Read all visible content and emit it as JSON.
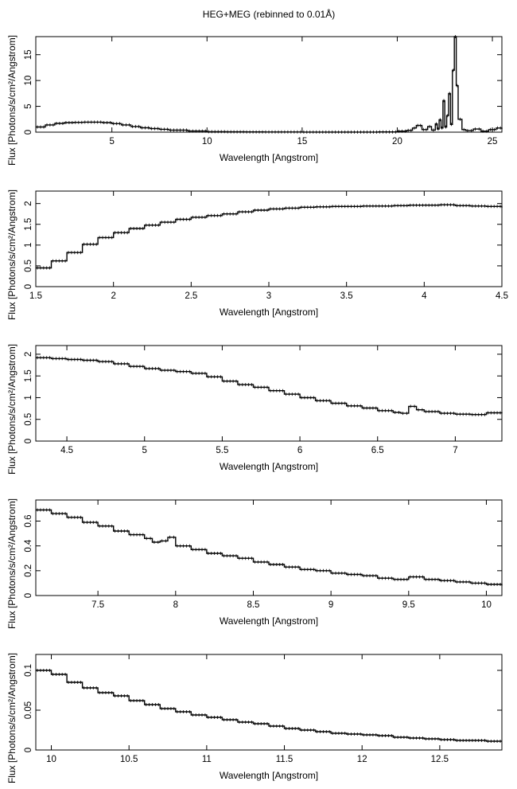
{
  "figure": {
    "title": "HEG+MEG (rebinned to 0.01Å)",
    "line_color": "#000000",
    "background": "#ffffff"
  },
  "chart_data": [
    {
      "type": "line",
      "style": "histogram-step with error bars",
      "xlabel": "Wavelength [Angstrom]",
      "ylabel": "Flux [Photons/s/cm²/Angstrom]",
      "xlim": [
        1.0,
        25.5
      ],
      "ylim": [
        0,
        18.5
      ],
      "xticks": [
        5,
        10,
        15,
        20,
        25
      ],
      "xtick_labels": [
        "5",
        "10",
        "15",
        "20",
        "25"
      ],
      "yticks": [
        0,
        5,
        10,
        15
      ],
      "ytick_labels": [
        "0",
        "5",
        "10",
        "15"
      ],
      "grid": false,
      "series": [
        {
          "x": [
            1.0,
            1.5,
            2.0,
            2.5,
            3.0,
            3.5,
            4.0,
            4.5,
            5.0,
            5.5,
            6.0,
            6.5,
            7.0,
            7.5,
            8.0,
            9.0,
            10.0,
            11.0,
            12.0,
            13.0,
            15.0,
            17.0,
            19.0,
            20.0,
            20.5,
            20.8,
            21.0,
            21.3,
            21.6,
            21.8,
            22.0,
            22.1,
            22.2,
            22.3,
            22.4,
            22.5,
            22.6,
            22.7,
            22.8,
            22.9,
            23.0,
            23.1,
            23.2,
            23.4,
            23.6,
            24.0,
            24.4,
            24.8,
            25.2,
            25.5
          ],
          "y": [
            1.0,
            1.4,
            1.7,
            1.85,
            1.9,
            1.95,
            1.95,
            1.85,
            1.65,
            1.4,
            1.1,
            0.85,
            0.7,
            0.55,
            0.4,
            0.22,
            0.1,
            0.06,
            0.04,
            0.03,
            0.02,
            0.02,
            0.05,
            0.2,
            0.35,
            0.8,
            1.3,
            0.5,
            1.1,
            0.4,
            1.6,
            0.6,
            2.4,
            0.8,
            6.1,
            1.0,
            3.2,
            7.5,
            1.5,
            12.0,
            18.5,
            9.0,
            2.5,
            0.5,
            0.3,
            0.6,
            0.2,
            0.5,
            0.8,
            0.6
          ]
        }
      ]
    },
    {
      "type": "line",
      "style": "histogram-step with error bars",
      "xlabel": "Wavelength [Angstrom]",
      "ylabel": "Flux [Photons/s/cm²/Angstrom]",
      "xlim": [
        1.5,
        4.5
      ],
      "ylim": [
        0,
        2.3
      ],
      "xticks": [
        1.5,
        2,
        2.5,
        3,
        3.5,
        4,
        4.5
      ],
      "xtick_labels": [
        "1.5",
        "2",
        "2.5",
        "3",
        "3.5",
        "4",
        "4.5"
      ],
      "yticks": [
        0,
        0.5,
        1,
        1.5,
        2
      ],
      "ytick_labels": [
        "0",
        "0.5",
        "1",
        "1.5",
        "2"
      ],
      "grid": false,
      "series": [
        {
          "x": [
            1.5,
            1.6,
            1.7,
            1.8,
            1.9,
            2.0,
            2.1,
            2.2,
            2.3,
            2.4,
            2.5,
            2.6,
            2.7,
            2.8,
            2.9,
            3.0,
            3.1,
            3.2,
            3.3,
            3.4,
            3.5,
            3.6,
            3.7,
            3.8,
            3.9,
            4.0,
            4.1,
            4.2,
            4.3,
            4.4,
            4.5
          ],
          "y": [
            0.45,
            0.62,
            0.82,
            1.02,
            1.18,
            1.3,
            1.4,
            1.48,
            1.55,
            1.62,
            1.67,
            1.71,
            1.75,
            1.8,
            1.84,
            1.87,
            1.89,
            1.91,
            1.92,
            1.93,
            1.93,
            1.94,
            1.94,
            1.95,
            1.96,
            1.96,
            1.97,
            1.95,
            1.94,
            1.93,
            1.9
          ]
        }
      ]
    },
    {
      "type": "line",
      "style": "histogram-step with error bars",
      "xlabel": "Wavelength [Angstrom]",
      "ylabel": "Flux [Photons/s/cm²/Angstrom]",
      "xlim": [
        4.3,
        7.3
      ],
      "ylim": [
        0,
        2.2
      ],
      "xticks": [
        4.5,
        5,
        5.5,
        6,
        6.5,
        7
      ],
      "xtick_labels": [
        "4.5",
        "5",
        "5.5",
        "6",
        "6.5",
        "7"
      ],
      "yticks": [
        0,
        0.5,
        1,
        1.5,
        2
      ],
      "ytick_labels": [
        "0",
        "0.5",
        "1",
        "1.5",
        "2"
      ],
      "grid": false,
      "series": [
        {
          "x": [
            4.3,
            4.4,
            4.5,
            4.6,
            4.7,
            4.8,
            4.9,
            5.0,
            5.1,
            5.2,
            5.3,
            5.4,
            5.5,
            5.6,
            5.7,
            5.8,
            5.9,
            6.0,
            6.1,
            6.2,
            6.3,
            6.4,
            6.5,
            6.6,
            6.65,
            6.7,
            6.75,
            6.8,
            6.9,
            7.0,
            7.1,
            7.2,
            7.3
          ],
          "y": [
            1.92,
            1.9,
            1.88,
            1.86,
            1.83,
            1.78,
            1.72,
            1.67,
            1.63,
            1.6,
            1.56,
            1.48,
            1.38,
            1.3,
            1.24,
            1.16,
            1.08,
            1.0,
            0.93,
            0.87,
            0.81,
            0.76,
            0.7,
            0.66,
            0.64,
            0.8,
            0.72,
            0.68,
            0.64,
            0.62,
            0.61,
            0.65,
            0.64
          ]
        }
      ]
    },
    {
      "type": "line",
      "style": "histogram-step with error bars",
      "xlabel": "Wavelength [Angstrom]",
      "ylabel": "Flux [Photons/s/cm²/Angstrom]",
      "xlim": [
        7.1,
        10.1
      ],
      "ylim": [
        0,
        0.77
      ],
      "xticks": [
        7.5,
        8,
        8.5,
        9,
        9.5,
        10
      ],
      "xtick_labels": [
        "7.5",
        "8",
        "8.5",
        "9",
        "9.5",
        "10"
      ],
      "yticks": [
        0,
        0.2,
        0.4,
        0.6
      ],
      "ytick_labels": [
        "0",
        "0.2",
        "0.4",
        "0.6"
      ],
      "grid": false,
      "series": [
        {
          "x": [
            7.1,
            7.2,
            7.3,
            7.4,
            7.5,
            7.6,
            7.7,
            7.8,
            7.85,
            7.9,
            7.95,
            8.0,
            8.1,
            8.2,
            8.3,
            8.4,
            8.5,
            8.6,
            8.7,
            8.8,
            8.9,
            9.0,
            9.1,
            9.2,
            9.3,
            9.4,
            9.5,
            9.6,
            9.7,
            9.8,
            9.9,
            10.0,
            10.1
          ],
          "y": [
            0.69,
            0.66,
            0.63,
            0.59,
            0.56,
            0.52,
            0.49,
            0.46,
            0.43,
            0.44,
            0.47,
            0.4,
            0.37,
            0.34,
            0.32,
            0.3,
            0.27,
            0.25,
            0.23,
            0.21,
            0.2,
            0.18,
            0.17,
            0.16,
            0.14,
            0.13,
            0.15,
            0.13,
            0.12,
            0.11,
            0.1,
            0.09,
            0.08
          ]
        }
      ]
    },
    {
      "type": "line",
      "style": "histogram-step with error bars",
      "xlabel": "Wavelength [Angstrom]",
      "ylabel": "Flux [Photons/s/cm²/Angstrom]",
      "xlim": [
        9.9,
        12.9
      ],
      "ylim": [
        0,
        0.12
      ],
      "xticks": [
        10,
        10.5,
        11,
        11.5,
        12,
        12.5
      ],
      "xtick_labels": [
        "10",
        "10.5",
        "11",
        "11.5",
        "12",
        "12.5"
      ],
      "yticks": [
        0,
        0.05,
        0.1
      ],
      "ytick_labels": [
        "0",
        "0.05",
        "0.1"
      ],
      "grid": false,
      "series": [
        {
          "x": [
            9.9,
            10.0,
            10.1,
            10.2,
            10.3,
            10.4,
            10.5,
            10.6,
            10.7,
            10.8,
            10.9,
            11.0,
            11.1,
            11.2,
            11.3,
            11.4,
            11.5,
            11.6,
            11.7,
            11.8,
            11.9,
            12.0,
            12.1,
            12.2,
            12.3,
            12.4,
            12.5,
            12.6,
            12.7,
            12.8,
            12.9
          ],
          "y": [
            0.1,
            0.095,
            0.085,
            0.078,
            0.072,
            0.068,
            0.062,
            0.057,
            0.052,
            0.048,
            0.044,
            0.041,
            0.038,
            0.035,
            0.033,
            0.03,
            0.027,
            0.025,
            0.023,
            0.021,
            0.02,
            0.019,
            0.018,
            0.016,
            0.015,
            0.014,
            0.013,
            0.012,
            0.012,
            0.011,
            0.011
          ]
        }
      ]
    }
  ]
}
